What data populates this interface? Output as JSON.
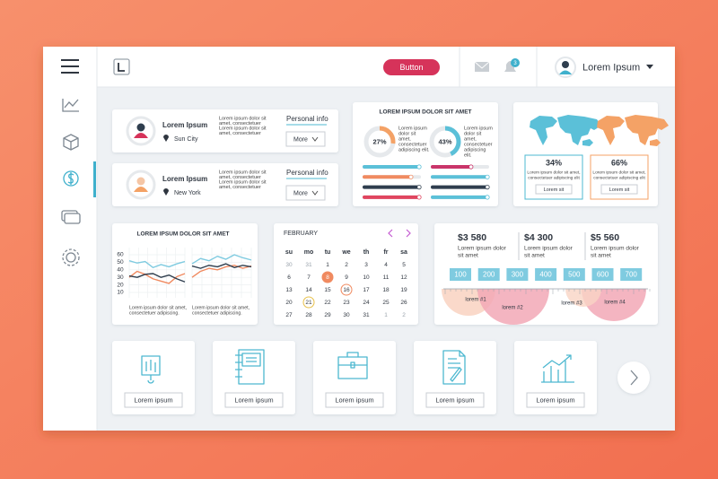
{
  "header": {
    "button": "Button",
    "badge": "3",
    "user": "Lorem Ipsum"
  },
  "profiles": [
    {
      "name": "Lorem Ipsum",
      "city": "Sun City",
      "text": [
        "Lorem ipsum dolor sit",
        "amet, consectetuer",
        "Lorem ipsum dolor sit",
        "amet, consectetuer"
      ],
      "link": "Personal info",
      "button": "More"
    },
    {
      "name": "Lorem Ipsum",
      "city": "New York",
      "text": [
        "Lorem ipsum dolor sit",
        "amet, consectetuer",
        "Lorem ipsum dolor sit",
        "amet, consectetuer"
      ],
      "link": "Personal info",
      "button": "More"
    }
  ],
  "donut_card": {
    "title": "LOREM IPSUM DOLOR SIT AMET",
    "donuts": [
      {
        "value": 27,
        "label": "27%",
        "color": "#f4a266",
        "text": [
          "Lorem ipsum",
          "dolor sit",
          "amet,",
          "consectetuer",
          "adipiscing elit."
        ]
      },
      {
        "value": 43,
        "label": "43%",
        "color": "#5bc0d8",
        "text": [
          "Lorem ipsum",
          "dolor sit",
          "amet,",
          "consectetuer",
          "adipiscing",
          "elit."
        ]
      }
    ],
    "bars": [
      {
        "color": "#5bc0d8",
        "values": [
          100,
          72
        ]
      },
      {
        "color": "#f08a60",
        "values": [
          86,
          100
        ]
      },
      {
        "color": "#2f3e4e",
        "values": [
          100,
          100
        ]
      },
      {
        "color": "#e0455f",
        "values": [
          100,
          100
        ]
      }
    ],
    "bar_colors_right": [
      "#c9356a",
      "#5bc0d8",
      "#2f3e4e",
      "#5bc0d8"
    ]
  },
  "map_card": {
    "boxes": [
      {
        "label": "34%",
        "text": [
          "Lorem ipsum dolor sit amet,",
          "consectetuer adipiscing elit"
        ],
        "button": "Lorem sit"
      },
      {
        "label": "66%",
        "text": [
          "Lorem ipsum dolor sit amet,",
          "consectetuer adipiscing elit"
        ],
        "button": "Lorem sit"
      }
    ]
  },
  "line_chart": {
    "title": "LOREM IPSUM DOLOR SIT AMET",
    "ylim": [
      0,
      70
    ],
    "yticks": [
      60,
      50,
      40,
      30,
      20,
      10
    ],
    "panels": [
      {
        "series": [
          {
            "color": "#7fcbe0",
            "values": [
              52,
              49,
              51,
              43,
              47,
              44,
              48,
              51
            ]
          },
          {
            "color": "#f08a60",
            "values": [
              30,
              38,
              34,
              28,
              25,
              22,
              31,
              35
            ]
          },
          {
            "color": "#2f3e4e",
            "values": [
              32,
              30,
              34,
              35,
              30,
              33,
              28,
              24
            ]
          }
        ],
        "caption": [
          "Lorem ipsum dolor sit amet,",
          "consectetuer adipiscing."
        ]
      },
      {
        "series": [
          {
            "color": "#7fcbe0",
            "values": [
              48,
              55,
              52,
              58,
              54,
              60,
              56,
              53
            ]
          },
          {
            "color": "#f08a60",
            "values": [
              30,
              38,
              42,
              40,
              44,
              46,
              42,
              45
            ]
          },
          {
            "color": "#2f3e4e",
            "values": [
              45,
              42,
              46,
              44,
              48,
              43,
              46,
              44
            ]
          }
        ],
        "caption": [
          "Lorem ipsum dolor sit amet,",
          "consectetuer adipiscing."
        ]
      }
    ]
  },
  "calendar": {
    "month": "FEBRUARY",
    "days": [
      "su",
      "mo",
      "tu",
      "we",
      "th",
      "fr",
      "sa"
    ],
    "weeks": [
      [
        "30",
        "31",
        "1",
        "2",
        "3",
        "4",
        "5"
      ],
      [
        "6",
        "7",
        "8",
        "9",
        "10",
        "11",
        "12"
      ],
      [
        "13",
        "14",
        "15",
        "16",
        "17",
        "18",
        "19"
      ],
      [
        "20",
        "21",
        "22",
        "23",
        "24",
        "25",
        "26"
      ],
      [
        "27",
        "28",
        "29",
        "30",
        "31",
        "1",
        "2"
      ]
    ]
  },
  "stats": {
    "items": [
      {
        "value": "$3 580",
        "text": [
          "Lorem ipsum dolor",
          "sit amet"
        ]
      },
      {
        "value": "$4 300",
        "text": [
          "Lorem ipsum dolor",
          "sit amet"
        ]
      },
      {
        "value": "$5 560",
        "text": [
          "Lorem ipsum dolor",
          "sit amet"
        ]
      }
    ],
    "scale": [
      "100",
      "200",
      "300",
      "400",
      "500",
      "600",
      "700"
    ],
    "labels": [
      "lorem #1",
      "lorem #2",
      "lorem #3",
      "lorem #4"
    ]
  },
  "tiles": [
    "Lorem ipsum",
    "Lorem ipsum",
    "Lorem ipsum",
    "Lorem ipsum",
    "Lorem ipsum"
  ]
}
